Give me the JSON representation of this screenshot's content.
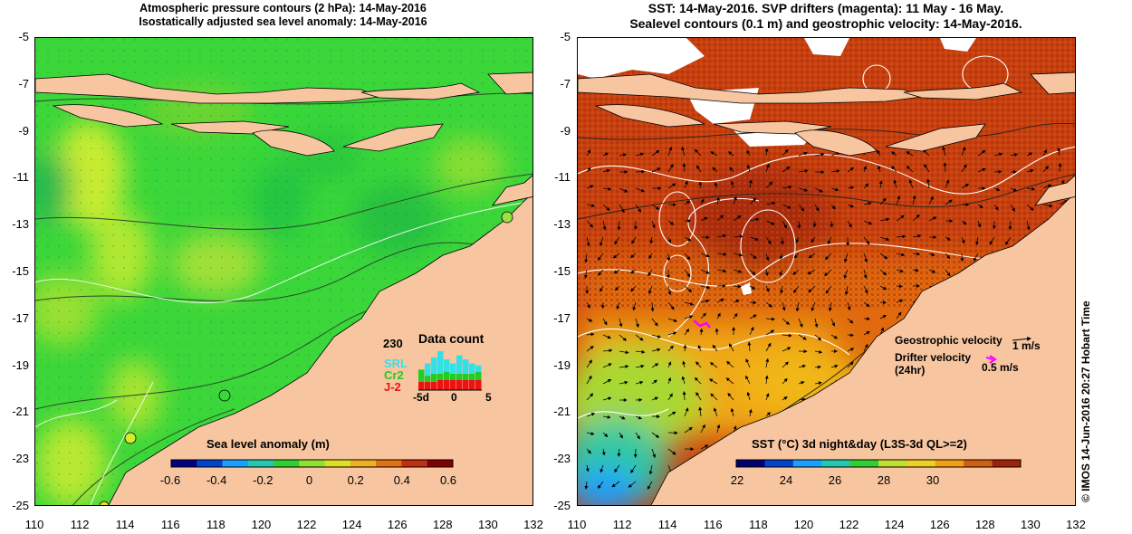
{
  "left_map": {
    "title_line1": "Atmospheric pressure contours (2 hPa): 14-May-2016",
    "title_line2": "Isostatically adjusted sea level anomaly: 14-May-2016",
    "colorbar": {
      "label": "Sea level anomaly (m)",
      "ticks": [
        "-0.6",
        "-0.4",
        "-0.2",
        "0",
        "0.2",
        "0.4",
        "0.6"
      ],
      "colors": [
        "#000080",
        "#0044cc",
        "#1aa0ff",
        "#20c9b0",
        "#30d030",
        "#8fe030",
        "#e0e020",
        "#f0b020",
        "#e07010",
        "#c03010",
        "#800000"
      ]
    },
    "data_count": {
      "title": "Data count",
      "max_label": "230",
      "satellites": [
        {
          "name": "SRL",
          "color": "#33e0e8"
        },
        {
          "name": "Cr2",
          "color": "#22cc22"
        },
        {
          "name": "J-2",
          "color": "#ee1111"
        }
      ],
      "x_labels": [
        "-5d",
        "0",
        "5"
      ],
      "bars": [
        {
          "srl": 0,
          "cr2": 60,
          "j2": 40
        },
        {
          "srl": 60,
          "cr2": 30,
          "j2": 40
        },
        {
          "srl": 80,
          "cr2": 40,
          "j2": 40
        },
        {
          "srl": 110,
          "cr2": 30,
          "j2": 50
        },
        {
          "srl": 60,
          "cr2": 40,
          "j2": 50
        },
        {
          "srl": 50,
          "cr2": 30,
          "j2": 50
        },
        {
          "srl": 90,
          "cr2": 30,
          "j2": 50
        },
        {
          "srl": 70,
          "cr2": 30,
          "j2": 50
        },
        {
          "srl": 50,
          "cr2": 30,
          "j2": 50
        },
        {
          "srl": 30,
          "cr2": 40,
          "j2": 50
        }
      ]
    }
  },
  "right_map": {
    "title_line1": "SST: 14-May-2016. SVP drifters (magenta): 11 May - 16 May.",
    "title_line2": "Sealevel contours (0.1 m) and geostrophic velocity: 14-May-2016.",
    "colorbar": {
      "label": "SST (°C) 3d night&day (L3S-3d QL>=2)",
      "ticks": [
        "22",
        "24",
        "26",
        "28",
        "30"
      ],
      "colors": [
        "#000070",
        "#0044cc",
        "#1aa0ff",
        "#20c9b0",
        "#30d030",
        "#c0e030",
        "#f0d020",
        "#f0a010",
        "#d06010",
        "#a02008"
      ]
    },
    "legend": {
      "geostrophic_label": "Geostrophic velocity",
      "geostrophic_scale": "1 m/s",
      "drifter_label_line1": "Drifter velocity",
      "drifter_label_line2": "(24hr)",
      "drifter_scale": "0.5 m/s"
    }
  },
  "axes": {
    "lat_ticks": [
      "-5",
      "-7",
      "-9",
      "-11",
      "-13",
      "-15",
      "-17",
      "-19",
      "-21",
      "-23",
      "-25"
    ],
    "lon_ticks": [
      "110",
      "112",
      "114",
      "116",
      "118",
      "120",
      "122",
      "124",
      "126",
      "128",
      "130",
      "132"
    ]
  },
  "copyright": "© IMOS 14-Jun-2016 20:27 Hobart Time",
  "colors": {
    "land": "#f7c6a0",
    "ocean_left": "#38d838",
    "ocean_right": "#c84010"
  }
}
